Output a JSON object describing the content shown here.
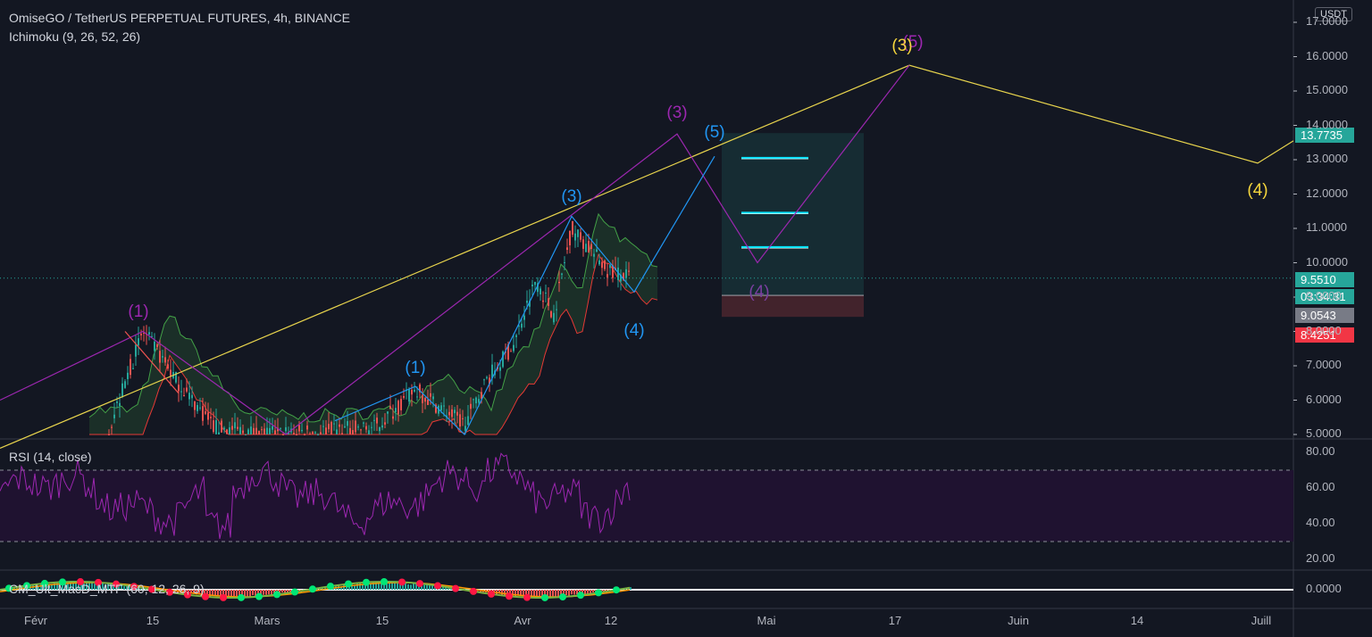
{
  "header": {
    "title": "OmiseGO / TetherUS PERPETUAL FUTURES, 4h, BINANCE",
    "indicator": "Ichimoku (9, 26, 52, 26)"
  },
  "currency_button": "USDT",
  "rsi_label": "RSI (14, close)",
  "macd_label": "CM_Ult_MacD_MTF (60, 12, 26, 9)",
  "price_badges": {
    "level": "13.7735",
    "last": "9.5510",
    "countdown": "03:34:31",
    "gray": "9.0543",
    "stop": "8.4251"
  },
  "colors": {
    "background": "#131722",
    "yellow": "#e8d44d",
    "purple": "#9c27b0",
    "blue": "#2196f3",
    "teal": "#26a69a",
    "red": "#ef5350",
    "green": "#7cb342"
  },
  "chart_data": {
    "type": "candlestick",
    "y_axis_ticks": [
      "5.0000",
      "6.0000",
      "7.0000",
      "8.0000",
      "9.0000",
      "10.0000",
      "11.0000",
      "12.0000",
      "13.0000",
      "14.0000",
      "15.0000",
      "16.0000",
      "17.0000"
    ],
    "ylim": [
      5,
      17.2
    ],
    "x_axis_ticks": [
      "Févr",
      "15",
      "Mars",
      "15",
      "Avr",
      "12",
      "Mai",
      "17",
      "Juin",
      "14",
      "Juill"
    ],
    "rsi": {
      "ticks": [
        "80.00",
        "60.00",
        "40.00",
        "20.00"
      ],
      "upper_band": 70,
      "lower_band": 30
    },
    "macd": {
      "ticks": [
        "0.0000"
      ]
    },
    "wave_labels": [
      {
        "text": "(1)",
        "color": "purple",
        "price": 8.0
      },
      {
        "text": "(3)",
        "color": "purple",
        "price": 13.7
      },
      {
        "text": "(4)",
        "color": "purple",
        "price": 9.9
      },
      {
        "text": "(5)",
        "color": "purple",
        "price": 15.8
      },
      {
        "text": "(1)",
        "color": "blue",
        "price": 6.4
      },
      {
        "text": "(3)",
        "color": "blue",
        "price": 11.3
      },
      {
        "text": "(4)",
        "color": "blue",
        "price": 9.2
      },
      {
        "text": "(5)",
        "color": "blue",
        "price": 13.1
      },
      {
        "text": "(3)",
        "color": "yellow",
        "price": 15.8
      },
      {
        "text": "(4)",
        "color": "yellow",
        "price": 12.9
      }
    ],
    "targets": [
      13.05,
      11.45,
      10.45
    ],
    "entry": 9.05,
    "stop": 8.4251
  }
}
